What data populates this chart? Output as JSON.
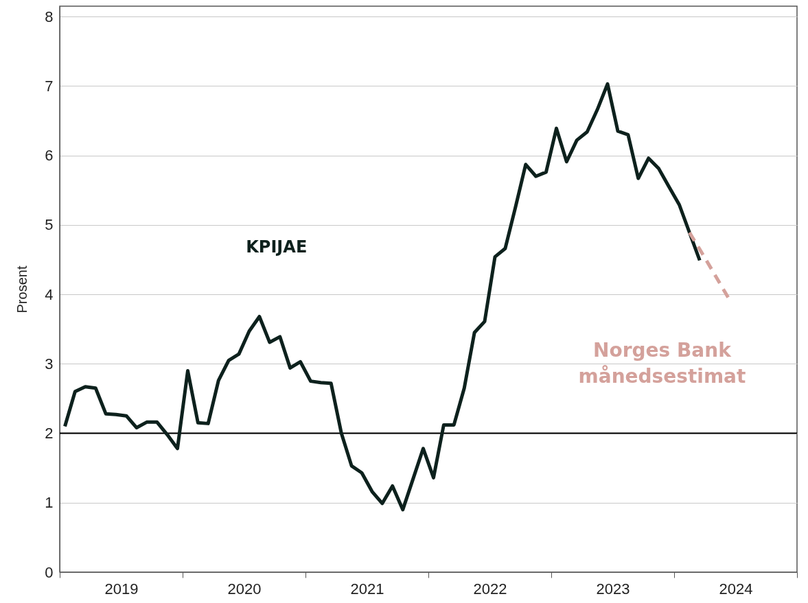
{
  "chart_data": {
    "type": "line",
    "ylabel": "Prosent",
    "xlim": [
      2019,
      2025
    ],
    "ylim": [
      0,
      8.15
    ],
    "xticks": [
      {
        "value": 2019,
        "label": null
      },
      {
        "value": 2019.5,
        "label": "2019"
      },
      {
        "value": 2020,
        "label": null
      },
      {
        "value": 2020.5,
        "label": "2020"
      },
      {
        "value": 2021,
        "label": null
      },
      {
        "value": 2021.5,
        "label": "2021"
      },
      {
        "value": 2022,
        "label": null
      },
      {
        "value": 2022.5,
        "label": "2022"
      },
      {
        "value": 2023,
        "label": null
      },
      {
        "value": 2023.5,
        "label": "2023"
      },
      {
        "value": 2024,
        "label": null
      },
      {
        "value": 2024.5,
        "label": "2024"
      },
      {
        "value": 2025,
        "label": null
      }
    ],
    "yticks": [
      0,
      1,
      2,
      3,
      4,
      5,
      6,
      7,
      8
    ],
    "grid": "y",
    "series": [
      {
        "name": "KPIJAE",
        "color": "#0d211d",
        "line_style": "solid",
        "x": [
          2019.042,
          2019.125,
          2019.208,
          2019.292,
          2019.375,
          2019.458,
          2019.542,
          2019.625,
          2019.708,
          2019.792,
          2019.875,
          2019.958,
          2020.042,
          2020.125,
          2020.208,
          2020.292,
          2020.375,
          2020.458,
          2020.542,
          2020.625,
          2020.708,
          2020.792,
          2020.875,
          2020.958,
          2021.042,
          2021.125,
          2021.208,
          2021.292,
          2021.375,
          2021.458,
          2021.542,
          2021.625,
          2021.708,
          2021.792,
          2021.875,
          2021.958,
          2022.042,
          2022.125,
          2022.208,
          2022.292,
          2022.375,
          2022.458,
          2022.542,
          2022.625,
          2022.708,
          2022.792,
          2022.875,
          2022.958,
          2023.042,
          2023.125,
          2023.208,
          2023.292,
          2023.375,
          2023.458,
          2023.542,
          2023.625,
          2023.708,
          2023.792,
          2023.875,
          2023.958,
          2024.042,
          2024.125,
          2024.208
        ],
        "values": [
          2.1,
          2.6,
          2.67,
          2.65,
          2.28,
          2.27,
          2.25,
          2.08,
          2.16,
          2.16,
          1.98,
          1.78,
          2.9,
          2.15,
          2.14,
          2.76,
          3.05,
          3.14,
          3.47,
          3.68,
          3.31,
          3.39,
          2.94,
          3.03,
          2.75,
          2.73,
          2.72,
          2.0,
          1.53,
          1.43,
          1.16,
          0.99,
          1.24,
          0.9,
          1.34,
          1.78,
          1.36,
          2.12,
          2.12,
          2.65,
          3.45,
          3.61,
          4.54,
          4.66,
          5.25,
          5.87,
          5.7,
          5.76,
          6.39,
          5.91,
          6.22,
          6.34,
          6.66,
          7.03,
          6.35,
          6.3,
          5.67,
          5.96,
          5.81,
          5.55,
          5.29,
          4.89,
          4.49
        ]
      },
      {
        "name": "Norges Bank\nmånedsestimat",
        "color": "#d4a19b",
        "line_style": "dashed",
        "x": [
          2024.125,
          2024.208,
          2024.292,
          2024.375,
          2024.458
        ],
        "values": [
          4.89,
          4.65,
          4.4,
          4.15,
          3.9
        ]
      }
    ],
    "ref_lines": [
      {
        "axis": "y",
        "value": 2,
        "color": "#000000",
        "line_style": "solid"
      }
    ]
  }
}
